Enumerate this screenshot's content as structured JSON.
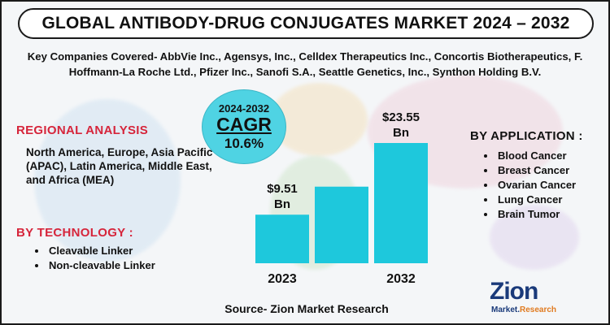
{
  "header": {
    "title": "GLOBAL ANTIBODY-DRUG CONJUGATES MARKET 2024 – 2032"
  },
  "companies_text": "Key Companies Covered- AbbVie Inc., Agensys, Inc., Celldex Therapeutics Inc., Concortis Biotherapeutics, F. Hoffmann-La Roche Ltd., Pfizer Inc., Sanofi S.A., Seattle Genetics, Inc., Synthon Holding B.V.",
  "cagr": {
    "period": "2024-2032",
    "label": "CAGR",
    "value": "10.6%"
  },
  "regional": {
    "heading": "REGIONAL ANALYSIS",
    "text": "North America, Europe, Asia Pacific (APAC), Latin America, Middle East, and Africa (MEA)"
  },
  "technology": {
    "heading": "BY  TECHNOLOGY :",
    "items": [
      "Cleavable Linker",
      "Non-cleavable Linker"
    ]
  },
  "application": {
    "heading": "BY APPLICATION :",
    "items": [
      "Blood Cancer",
      "Breast Cancer",
      "Ovarian Cancer",
      "Lung Cancer",
      "Brain Tumor"
    ]
  },
  "chart_data": {
    "type": "bar",
    "categories": [
      "2023",
      "",
      "2032"
    ],
    "values": [
      9.51,
      15.0,
      23.55
    ],
    "data_labels": [
      "$9.51\nBn",
      "",
      "$23.55\nBn"
    ],
    "color": "#1ec8dc",
    "title": "",
    "xlabel": "",
    "ylabel": ""
  },
  "source": "Source- Zion Market Research",
  "logo": {
    "main": "Zion",
    "sub_left": "Market.",
    "sub_right": "Research"
  },
  "colors": {
    "accent_red": "#d6253b",
    "cagr_circle": "#4fd3e3",
    "bar": "#1ec8dc",
    "logo_blue": "#1a3a7a",
    "logo_orange": "#e07a1f"
  }
}
